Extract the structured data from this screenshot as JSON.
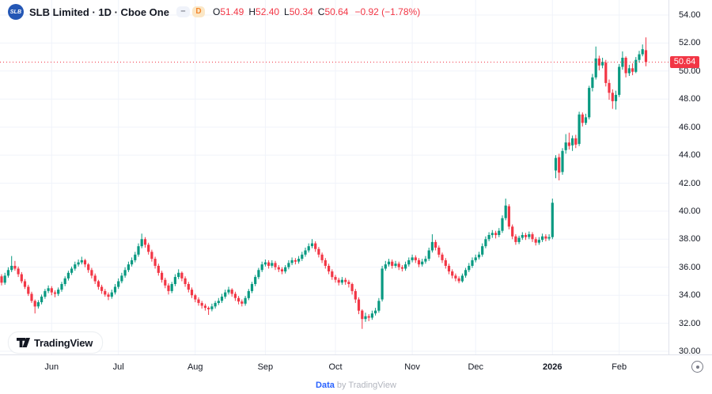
{
  "header": {
    "symbol_logo_text": "SLB",
    "title": "SLB Limited · 1D · Cboe One",
    "dash_badge": "–",
    "interval_badge": "D",
    "ohlc": {
      "o_label": "O",
      "o_value": "51.49",
      "h_label": "H",
      "h_value": "52.40",
      "l_label": "L",
      "l_value": "50.34",
      "c_label": "C",
      "c_value": "50.64",
      "change": "−0.92 (−1.78%)"
    }
  },
  "attribution": {
    "logo_icon": "tradingview-logo-icon",
    "name": "TradingView"
  },
  "footer": {
    "link": "Data",
    "byline": " by TradingView"
  },
  "chart_data": {
    "type": "candlestick",
    "title": "SLB Limited",
    "interval": "1D",
    "exchange": "Cboe One",
    "legend_position": "top-left",
    "grid": true,
    "y_axis": {
      "min": 30,
      "max": 54,
      "tick_step": 2,
      "ticks": [
        {
          "v": 54,
          "label": "54.00"
        },
        {
          "v": 52,
          "label": "52.00"
        },
        {
          "v": 50,
          "label": "50.00"
        },
        {
          "v": 48,
          "label": "48.00"
        },
        {
          "v": 46,
          "label": "46.00"
        },
        {
          "v": 44,
          "label": "44.00"
        },
        {
          "v": 42,
          "label": "42.00"
        },
        {
          "v": 40,
          "label": "40.00"
        },
        {
          "v": 38,
          "label": "38.00"
        },
        {
          "v": 36,
          "label": "36.00"
        },
        {
          "v": 34,
          "label": "34.00"
        },
        {
          "v": 32,
          "label": "32.00"
        },
        {
          "v": 30,
          "label": "30.00"
        }
      ]
    },
    "x_axis": {
      "ticks": [
        {
          "label": "Jun",
          "index": 15
        },
        {
          "label": "Jul",
          "index": 35
        },
        {
          "label": "Aug",
          "index": 58
        },
        {
          "label": "Sep",
          "index": 79
        },
        {
          "label": "Oct",
          "index": 100
        },
        {
          "label": "Nov",
          "index": 123
        },
        {
          "label": "Dec",
          "index": 142
        },
        {
          "label": "2026",
          "index": 165,
          "bold": true
        },
        {
          "label": "Feb",
          "index": 185
        }
      ]
    },
    "last_price": 50.64,
    "last_price_label": "50.64",
    "colors": {
      "up": "#089981",
      "down": "#F23645",
      "grid": "#F0F3FA",
      "last_price_line": "#F23645",
      "badge_bg": "#F23645",
      "axis_text": "#131722"
    },
    "candles": [
      [
        35.35,
        35.5,
        34.7,
        34.9
      ],
      [
        34.9,
        35.6,
        34.75,
        35.4
      ],
      [
        35.4,
        36.0,
        35.25,
        35.8
      ],
      [
        35.8,
        36.8,
        35.65,
        36.1
      ],
      [
        36.1,
        36.45,
        35.75,
        35.9
      ],
      [
        35.9,
        36.05,
        35.3,
        35.5
      ],
      [
        35.5,
        35.65,
        34.85,
        35.0
      ],
      [
        35.0,
        35.15,
        34.45,
        34.6
      ],
      [
        34.6,
        34.75,
        33.95,
        34.1
      ],
      [
        34.1,
        34.25,
        33.45,
        33.6
      ],
      [
        33.6,
        33.7,
        32.7,
        33.2
      ],
      [
        33.2,
        33.65,
        33.05,
        33.5
      ],
      [
        33.5,
        34.05,
        33.35,
        33.9
      ],
      [
        33.9,
        34.45,
        33.75,
        34.3
      ],
      [
        34.3,
        34.7,
        34.15,
        34.5
      ],
      [
        34.5,
        34.65,
        34.0,
        34.2
      ],
      [
        34.2,
        34.35,
        33.85,
        34.1
      ],
      [
        34.1,
        34.55,
        33.95,
        34.4
      ],
      [
        34.4,
        34.95,
        34.25,
        34.8
      ],
      [
        34.8,
        35.35,
        34.65,
        35.2
      ],
      [
        35.2,
        35.75,
        35.05,
        35.6
      ],
      [
        35.6,
        36.05,
        35.45,
        35.9
      ],
      [
        35.9,
        36.4,
        35.75,
        36.2
      ],
      [
        36.2,
        36.55,
        36.05,
        36.35
      ],
      [
        36.35,
        36.75,
        36.2,
        36.5
      ],
      [
        36.5,
        36.6,
        36.0,
        36.2
      ],
      [
        36.2,
        36.3,
        35.6,
        35.8
      ],
      [
        35.8,
        35.95,
        35.2,
        35.4
      ],
      [
        35.4,
        35.55,
        34.8,
        35.0
      ],
      [
        35.0,
        35.1,
        34.4,
        34.6
      ],
      [
        34.6,
        34.75,
        34.1,
        34.3
      ],
      [
        34.3,
        34.45,
        33.9,
        34.05
      ],
      [
        34.05,
        34.2,
        33.65,
        33.9
      ],
      [
        33.9,
        34.4,
        33.75,
        34.2
      ],
      [
        34.2,
        34.8,
        34.05,
        34.6
      ],
      [
        34.6,
        35.2,
        34.45,
        35.0
      ],
      [
        35.0,
        35.6,
        34.85,
        35.4
      ],
      [
        35.4,
        36.0,
        35.25,
        35.8
      ],
      [
        35.8,
        36.4,
        35.65,
        36.2
      ],
      [
        36.2,
        36.7,
        36.05,
        36.5
      ],
      [
        36.5,
        37.1,
        36.35,
        36.9
      ],
      [
        36.9,
        37.7,
        36.75,
        37.5
      ],
      [
        37.5,
        38.4,
        37.35,
        38.0
      ],
      [
        38.0,
        38.15,
        37.4,
        37.6
      ],
      [
        37.6,
        37.75,
        36.9,
        37.1
      ],
      [
        37.1,
        37.25,
        36.4,
        36.6
      ],
      [
        36.6,
        36.75,
        35.9,
        36.1
      ],
      [
        36.1,
        36.25,
        35.4,
        35.6
      ],
      [
        35.6,
        35.75,
        34.9,
        35.1
      ],
      [
        35.1,
        35.25,
        34.5,
        34.7
      ],
      [
        34.7,
        34.85,
        34.05,
        34.3
      ],
      [
        34.3,
        34.95,
        34.15,
        34.8
      ],
      [
        34.8,
        35.5,
        34.65,
        35.3
      ],
      [
        35.3,
        35.85,
        35.15,
        35.6
      ],
      [
        35.6,
        35.7,
        35.0,
        35.2
      ],
      [
        35.2,
        35.35,
        34.6,
        34.8
      ],
      [
        34.8,
        34.95,
        34.2,
        34.4
      ],
      [
        34.4,
        34.55,
        33.8,
        34.0
      ],
      [
        34.0,
        34.1,
        33.5,
        33.7
      ],
      [
        33.7,
        33.85,
        33.25,
        33.45
      ],
      [
        33.45,
        33.6,
        33.05,
        33.25
      ],
      [
        33.25,
        33.4,
        32.9,
        33.1
      ],
      [
        33.1,
        33.2,
        32.6,
        33.0
      ],
      [
        33.0,
        33.4,
        32.85,
        33.2
      ],
      [
        33.2,
        33.6,
        33.05,
        33.45
      ],
      [
        33.45,
        33.8,
        33.3,
        33.6
      ],
      [
        33.6,
        34.1,
        33.45,
        33.9
      ],
      [
        33.9,
        34.4,
        33.75,
        34.2
      ],
      [
        34.2,
        34.6,
        34.05,
        34.4
      ],
      [
        34.4,
        34.5,
        33.9,
        34.1
      ],
      [
        34.1,
        34.25,
        33.6,
        33.8
      ],
      [
        33.8,
        33.95,
        33.35,
        33.55
      ],
      [
        33.55,
        33.7,
        33.2,
        33.4
      ],
      [
        33.4,
        33.95,
        33.25,
        33.8
      ],
      [
        33.8,
        34.45,
        33.65,
        34.3
      ],
      [
        34.3,
        34.95,
        34.15,
        34.8
      ],
      [
        34.8,
        35.45,
        34.65,
        35.3
      ],
      [
        35.3,
        35.95,
        35.15,
        35.8
      ],
      [
        35.8,
        36.4,
        35.65,
        36.2
      ],
      [
        36.2,
        36.55,
        36.05,
        36.35
      ],
      [
        36.35,
        36.5,
        35.9,
        36.1
      ],
      [
        36.1,
        36.5,
        35.95,
        36.3
      ],
      [
        36.3,
        36.45,
        35.8,
        36.0
      ],
      [
        36.0,
        36.15,
        35.65,
        35.85
      ],
      [
        35.85,
        36.0,
        35.5,
        35.7
      ],
      [
        35.7,
        36.15,
        35.55,
        36.0
      ],
      [
        36.0,
        36.5,
        35.85,
        36.3
      ],
      [
        36.3,
        36.7,
        36.15,
        36.5
      ],
      [
        36.5,
        36.65,
        36.2,
        36.4
      ],
      [
        36.4,
        36.8,
        36.25,
        36.6
      ],
      [
        36.6,
        37.1,
        36.45,
        36.9
      ],
      [
        36.9,
        37.4,
        36.75,
        37.2
      ],
      [
        37.2,
        37.7,
        37.05,
        37.5
      ],
      [
        37.5,
        38.0,
        37.35,
        37.7
      ],
      [
        37.7,
        37.85,
        37.1,
        37.3
      ],
      [
        37.3,
        37.45,
        36.7,
        36.9
      ],
      [
        36.9,
        37.05,
        36.3,
        36.5
      ],
      [
        36.5,
        36.65,
        35.9,
        36.1
      ],
      [
        36.1,
        36.25,
        35.5,
        35.7
      ],
      [
        35.7,
        35.85,
        35.1,
        35.3
      ],
      [
        35.3,
        35.45,
        34.9,
        35.1
      ],
      [
        35.1,
        35.25,
        34.7,
        34.9
      ],
      [
        34.9,
        35.3,
        34.75,
        35.1
      ],
      [
        35.1,
        35.25,
        34.75,
        34.95
      ],
      [
        34.95,
        35.1,
        34.55,
        34.8
      ],
      [
        34.8,
        34.9,
        34.05,
        34.3
      ],
      [
        34.3,
        34.45,
        33.45,
        33.7
      ],
      [
        33.7,
        33.85,
        32.65,
        32.9
      ],
      [
        32.9,
        33.0,
        31.6,
        32.3
      ],
      [
        32.3,
        32.75,
        32.1,
        32.5
      ],
      [
        32.5,
        32.65,
        32.15,
        32.4
      ],
      [
        32.4,
        32.9,
        32.25,
        32.7
      ],
      [
        32.7,
        33.1,
        32.55,
        32.9
      ],
      [
        32.9,
        33.8,
        32.75,
        33.6
      ],
      [
        33.7,
        36.1,
        33.55,
        35.9
      ],
      [
        35.9,
        36.45,
        35.75,
        36.2
      ],
      [
        36.2,
        36.6,
        36.05,
        36.4
      ],
      [
        36.4,
        36.55,
        35.9,
        36.1
      ],
      [
        36.1,
        36.45,
        35.95,
        36.25
      ],
      [
        36.25,
        36.4,
        35.8,
        36.0
      ],
      [
        36.0,
        36.15,
        35.7,
        35.9
      ],
      [
        35.9,
        36.4,
        35.75,
        36.2
      ],
      [
        36.2,
        36.7,
        36.05,
        36.5
      ],
      [
        36.5,
        36.9,
        36.35,
        36.7
      ],
      [
        36.7,
        36.85,
        36.3,
        36.5
      ],
      [
        36.5,
        36.65,
        36.0,
        36.2
      ],
      [
        36.2,
        36.6,
        36.05,
        36.4
      ],
      [
        36.4,
        36.8,
        36.25,
        36.6
      ],
      [
        36.6,
        37.4,
        36.45,
        37.2
      ],
      [
        37.2,
        38.35,
        37.05,
        37.8
      ],
      [
        37.8,
        37.95,
        37.2,
        37.4
      ],
      [
        37.4,
        37.55,
        36.7,
        36.9
      ],
      [
        36.9,
        37.05,
        36.3,
        36.5
      ],
      [
        36.5,
        36.65,
        35.9,
        36.1
      ],
      [
        36.1,
        36.25,
        35.5,
        35.7
      ],
      [
        35.7,
        35.85,
        35.2,
        35.4
      ],
      [
        35.4,
        35.55,
        35.0,
        35.2
      ],
      [
        35.2,
        35.35,
        34.85,
        35.0
      ],
      [
        35.0,
        35.55,
        34.9,
        35.4
      ],
      [
        35.4,
        35.95,
        35.25,
        35.8
      ],
      [
        35.8,
        36.3,
        35.65,
        36.1
      ],
      [
        36.1,
        36.7,
        35.95,
        36.5
      ],
      [
        36.5,
        36.9,
        36.35,
        36.7
      ],
      [
        36.7,
        37.1,
        36.55,
        36.9
      ],
      [
        36.9,
        37.7,
        36.75,
        37.5
      ],
      [
        37.5,
        38.2,
        37.35,
        38.0
      ],
      [
        38.0,
        38.5,
        37.85,
        38.3
      ],
      [
        38.3,
        38.65,
        38.1,
        38.45
      ],
      [
        38.45,
        38.6,
        38.05,
        38.3
      ],
      [
        38.3,
        38.8,
        38.15,
        38.6
      ],
      [
        38.6,
        39.7,
        38.45,
        39.5
      ],
      [
        39.5,
        40.9,
        39.35,
        40.4
      ],
      [
        40.35,
        40.5,
        38.7,
        38.9
      ],
      [
        38.9,
        39.05,
        38.0,
        38.2
      ],
      [
        38.2,
        38.35,
        37.6,
        37.8
      ],
      [
        37.8,
        38.25,
        37.65,
        38.1
      ],
      [
        38.1,
        38.5,
        37.95,
        38.3
      ],
      [
        38.3,
        38.45,
        37.95,
        38.15
      ],
      [
        38.15,
        38.55,
        38.0,
        38.35
      ],
      [
        38.35,
        38.5,
        37.8,
        38.0
      ],
      [
        38.0,
        38.15,
        37.55,
        37.75
      ],
      [
        37.75,
        38.15,
        37.6,
        37.95
      ],
      [
        37.95,
        38.4,
        37.8,
        38.2
      ],
      [
        38.2,
        38.35,
        37.85,
        38.05
      ],
      [
        38.05,
        38.35,
        37.9,
        38.15
      ],
      [
        38.15,
        40.9,
        38.0,
        40.6
      ],
      [
        42.9,
        44.0,
        42.35,
        43.8
      ],
      [
        43.85,
        44.1,
        42.2,
        42.75
      ],
      [
        42.8,
        44.5,
        42.6,
        44.3
      ],
      [
        44.35,
        45.5,
        44.1,
        44.9
      ],
      [
        44.9,
        45.6,
        44.4,
        44.65
      ],
      [
        44.7,
        45.4,
        44.3,
        45.2
      ],
      [
        45.2,
        45.45,
        44.5,
        44.75
      ],
      [
        44.8,
        47.1,
        44.65,
        46.9
      ],
      [
        46.9,
        47.05,
        46.05,
        46.3
      ],
      [
        46.3,
        46.95,
        46.15,
        46.7
      ],
      [
        46.7,
        48.95,
        46.55,
        48.8
      ],
      [
        48.8,
        49.8,
        48.55,
        49.55
      ],
      [
        49.55,
        51.75,
        49.4,
        50.9
      ],
      [
        50.9,
        51.1,
        50.05,
        50.4
      ],
      [
        50.4,
        50.95,
        50.2,
        50.65
      ],
      [
        50.6,
        50.8,
        48.9,
        49.15
      ],
      [
        49.15,
        49.4,
        47.95,
        48.45
      ],
      [
        48.45,
        48.7,
        47.3,
        47.85
      ],
      [
        47.85,
        48.6,
        47.25,
        48.3
      ],
      [
        48.3,
        50.5,
        48.15,
        50.3
      ],
      [
        50.3,
        51.4,
        50.1,
        50.95
      ],
      [
        50.95,
        51.05,
        49.55,
        49.85
      ],
      [
        49.85,
        50.45,
        49.65,
        50.2
      ],
      [
        50.2,
        50.55,
        49.7,
        49.95
      ],
      [
        49.95,
        51.0,
        49.85,
        50.8
      ],
      [
        50.8,
        51.45,
        50.6,
        51.2
      ],
      [
        51.2,
        51.9,
        51.05,
        51.56
      ],
      [
        51.49,
        52.4,
        50.34,
        50.64
      ]
    ]
  }
}
